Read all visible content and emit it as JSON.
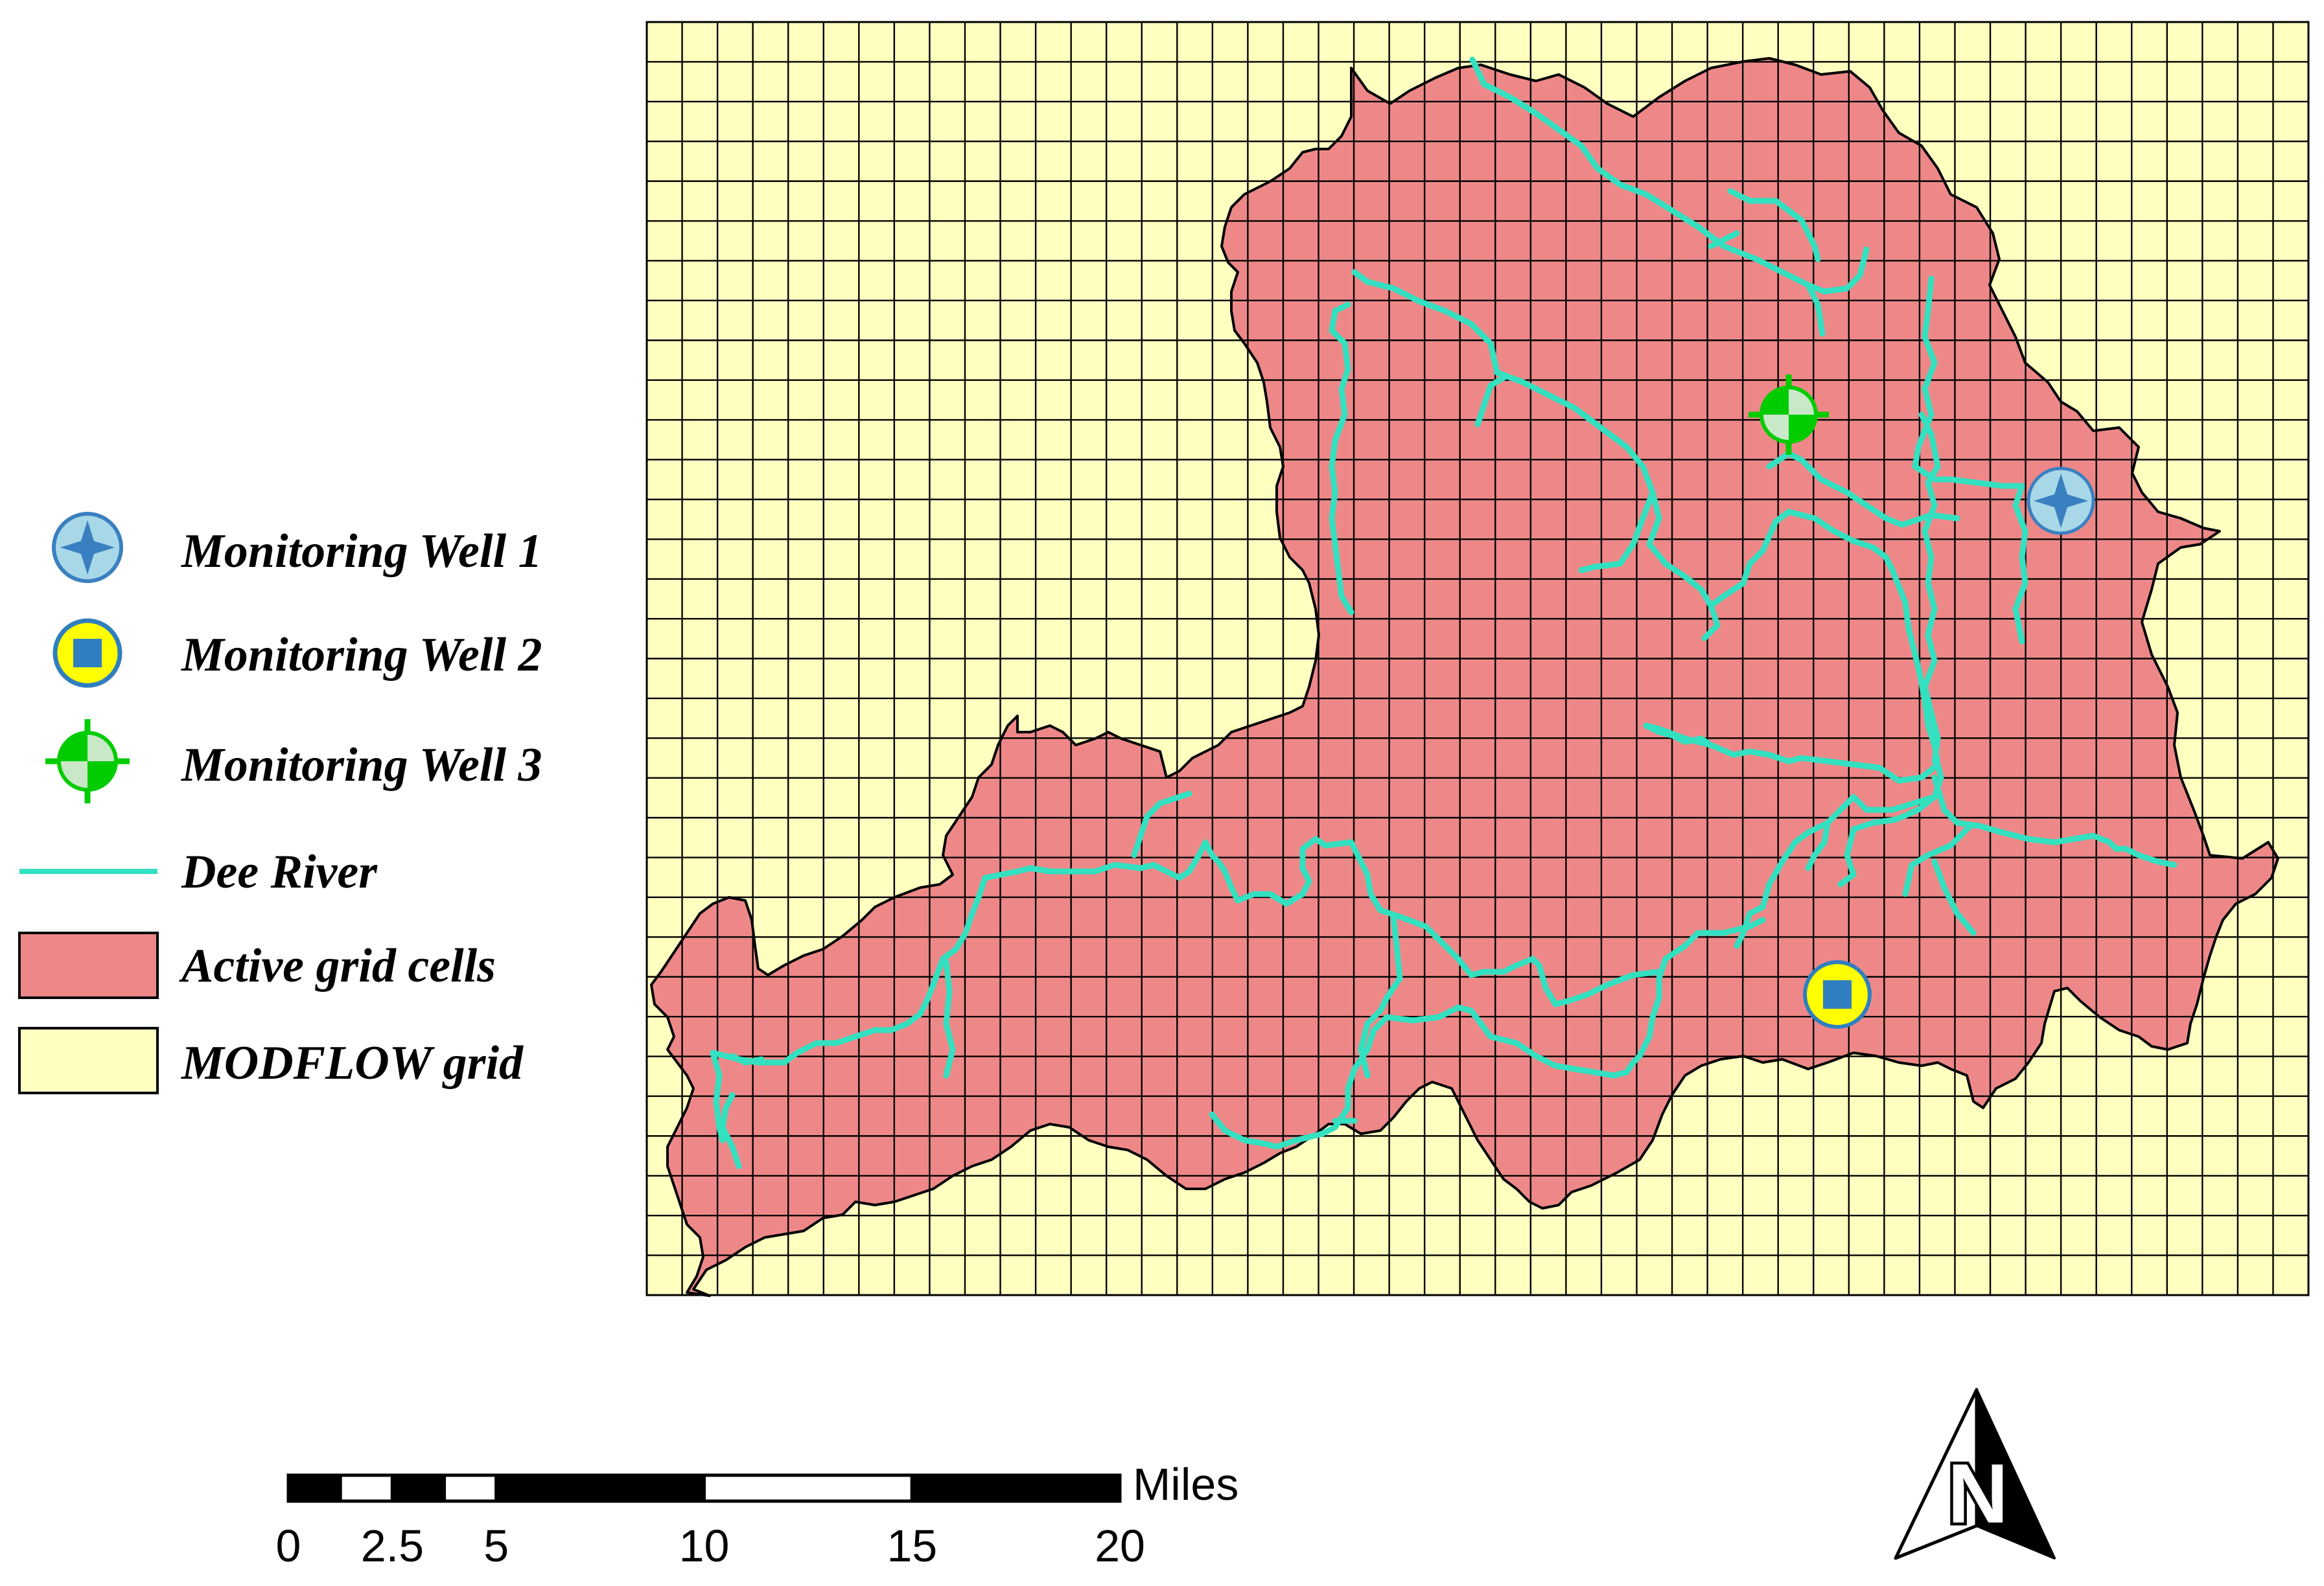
{
  "legend": {
    "items": [
      {
        "key": "well1",
        "label": "Monitoring Well 1",
        "icon": "star-circle-icon"
      },
      {
        "key": "well2",
        "label": "Monitoring Well 2",
        "icon": "square-circle-icon"
      },
      {
        "key": "well3",
        "label": "Monitoring Well 3",
        "icon": "crosshair-circle-icon"
      },
      {
        "key": "river",
        "label": "Dee River",
        "icon": "line-icon"
      },
      {
        "key": "active",
        "label": "Active grid cells",
        "icon": "red-box-icon"
      },
      {
        "key": "grid",
        "label": "MODFLOW grid",
        "icon": "yellow-box-icon"
      }
    ]
  },
  "scale_bar": {
    "unit": "Miles",
    "ticks": [
      "0",
      "2.5",
      "5",
      "10",
      "15",
      "20"
    ],
    "tick_values": [
      0,
      2.5,
      5,
      10,
      15,
      20
    ],
    "max_value": 20
  },
  "north_arrow": {
    "label": "N"
  },
  "colors": {
    "grid_fill": "#FFFFC0",
    "active_fill": "#EE8888",
    "river": "#33E0C0",
    "well1_fill": "#A8D8E8",
    "well1_star": "#3A80C0",
    "well2_ring": "#2F7FC0",
    "well2_fill": "#FFFF00",
    "well3": "#00CC00",
    "outline": "#000000"
  },
  "grid": {
    "columns": 47,
    "rows": 32
  }
}
